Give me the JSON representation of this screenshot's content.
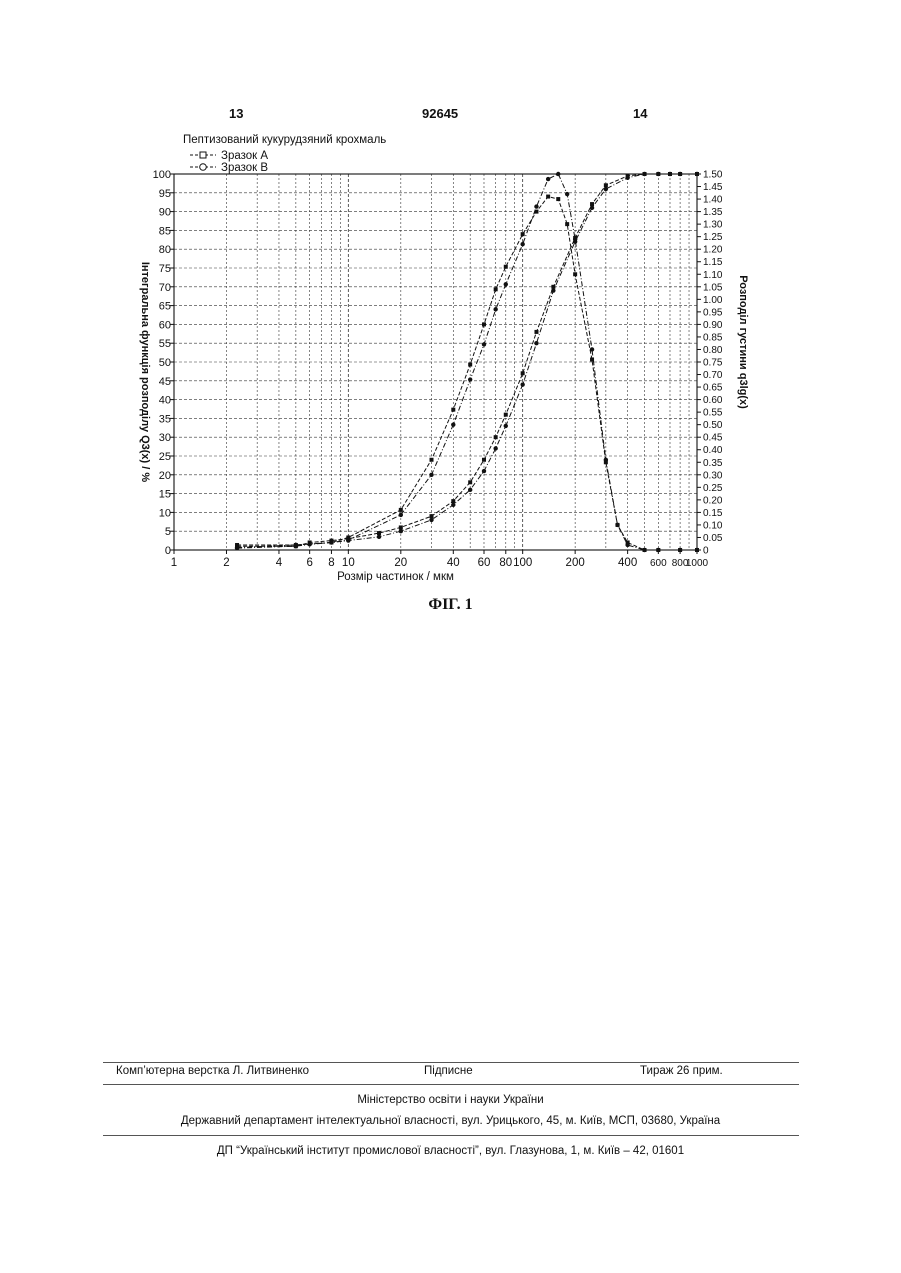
{
  "header": {
    "page_left": "13",
    "patent_number": "92645",
    "page_right": "14"
  },
  "figure_caption": "ФІГ. 1",
  "chart_data": {
    "type": "line",
    "title": "Пептизований кукурудзяний крохмаль",
    "xlabel": "Розмір частинок / мкм",
    "ylabel_left": "Інтегральна функція розподілу Q3(x) / %",
    "ylabel_right": "Розподіл густини q3lg(x)",
    "x_scale": "log",
    "xlim": [
      1,
      1000
    ],
    "ylim_left": [
      0,
      100
    ],
    "ylim_right": [
      0,
      1.5
    ],
    "grid": true,
    "legend_position": "top-left",
    "x_ticks": [
      1,
      2,
      4,
      6,
      8,
      10,
      20,
      40,
      60,
      80,
      100,
      200,
      400,
      600,
      800,
      1000
    ],
    "y_ticks_left": [
      0,
      5,
      10,
      15,
      20,
      25,
      30,
      35,
      40,
      45,
      50,
      55,
      60,
      65,
      70,
      75,
      80,
      85,
      90,
      95,
      100
    ],
    "y_ticks_right": [
      "0",
      "0.05",
      "0.10",
      "0.15",
      "0.20",
      "0.25",
      "0.30",
      "0.35",
      "0.40",
      "0.45",
      "0.50",
      "0.55",
      "0.60",
      "0.65",
      "0.70",
      "0.75",
      "0.80",
      "0.85",
      "0.90",
      "0.95",
      "1.00",
      "1.05",
      "1.10",
      "1.15",
      "1.20",
      "1.25",
      "1.30",
      "1.35",
      "1.40",
      "1.45",
      "1.50"
    ],
    "series": [
      {
        "name": "Зразок А",
        "marker": "square",
        "cumulative": {
          "axis": "left",
          "x": [
            2.3,
            5,
            6,
            8,
            10,
            15,
            20,
            30,
            40,
            50,
            60,
            70,
            80,
            100,
            120,
            150,
            200,
            250,
            300,
            400,
            500,
            600,
            700,
            800,
            1000
          ],
          "y": [
            1,
            1,
            2,
            2.5,
            3,
            4.5,
            6,
            9,
            13,
            18,
            24,
            30,
            36,
            47,
            58,
            70,
            83,
            92,
            97,
            99.5,
            100,
            100,
            100,
            100,
            100
          ]
        },
        "density": {
          "axis": "right",
          "x": [
            2.3,
            5,
            8,
            10,
            20,
            30,
            40,
            50,
            60,
            70,
            80,
            100,
            120,
            140,
            160,
            180,
            200,
            250,
            300,
            350,
            400,
            500,
            600,
            800,
            1000
          ],
          "y": [
            0.02,
            0.02,
            0.03,
            0.05,
            0.16,
            0.36,
            0.56,
            0.74,
            0.9,
            1.04,
            1.13,
            1.26,
            1.35,
            1.41,
            1.4,
            1.3,
            1.1,
            0.76,
            0.35,
            0.1,
            0.03,
            0,
            0,
            0,
            0
          ]
        }
      },
      {
        "name": "Зразок В",
        "marker": "circle",
        "cumulative": {
          "axis": "left",
          "x": [
            2.3,
            5,
            6,
            8,
            10,
            15,
            20,
            30,
            40,
            50,
            60,
            70,
            80,
            100,
            120,
            150,
            200,
            250,
            300,
            400,
            500,
            600,
            700,
            800,
            1000
          ],
          "y": [
            0.5,
            1,
            1.5,
            2,
            2.5,
            3.5,
            5,
            8,
            12,
            16,
            21,
            27,
            33,
            44,
            55,
            69,
            82,
            91,
            96,
            99,
            100,
            100,
            100,
            100,
            100
          ]
        },
        "density": {
          "axis": "right",
          "x": [
            2.3,
            5,
            8,
            10,
            20,
            30,
            40,
            50,
            60,
            70,
            80,
            100,
            120,
            140,
            160,
            180,
            200,
            250,
            300,
            350,
            400,
            500,
            600,
            800,
            1000
          ],
          "y": [
            0.01,
            0.02,
            0.03,
            0.04,
            0.14,
            0.3,
            0.5,
            0.68,
            0.82,
            0.96,
            1.06,
            1.22,
            1.37,
            1.48,
            1.5,
            1.42,
            1.24,
            0.8,
            0.36,
            0.1,
            0.02,
            0,
            0,
            0,
            0
          ]
        }
      }
    ]
  },
  "footer": {
    "layout": "Комп’ютерна верстка Л. Литвиненко",
    "signed": "Підписне",
    "circulation": "Тираж 26 прим.",
    "ministry": "Міністерство освіти і науки України",
    "department": "Державний департамент інтелектуальної власності, вул. Урицького, 45, м. Київ, МСП, 03680, Україна",
    "institute": "ДП “Український інститут промислової власності”, вул. Глазунова, 1, м. Київ – 42, 01601"
  }
}
